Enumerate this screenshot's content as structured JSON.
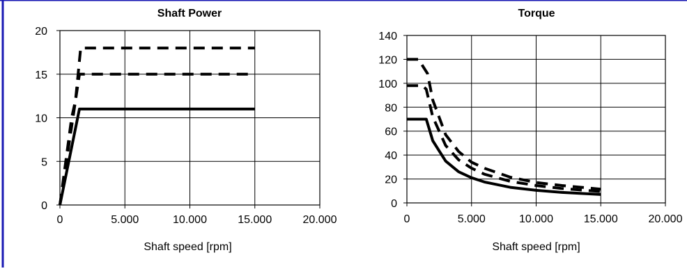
{
  "chart_data": [
    {
      "type": "line",
      "title": "Shaft Power",
      "xlabel": "Shaft speed [rpm]",
      "ylabel": "",
      "xlim": [
        0,
        20000
      ],
      "ylim": [
        0,
        20
      ],
      "x_ticks": [
        0,
        5000,
        10000,
        15000,
        20000
      ],
      "x_tick_labels": [
        "0",
        "5.000",
        "10.000",
        "15.000",
        "20.000"
      ],
      "y_ticks": [
        0,
        5,
        10,
        15,
        20
      ],
      "y_tick_labels": [
        "0",
        "5",
        "10",
        "15",
        "20"
      ],
      "grid": true,
      "series": [
        {
          "style": "solid",
          "x": [
            0,
            1500,
            15000
          ],
          "y": [
            0,
            11,
            11
          ]
        },
        {
          "style": "dashed",
          "x": [
            0,
            1200,
            1500,
            15000
          ],
          "y": [
            0,
            12,
            15,
            15
          ]
        },
        {
          "style": "dashed",
          "x": [
            0,
            900,
            1200,
            1600,
            15000
          ],
          "y": [
            0,
            10,
            12,
            18,
            18
          ]
        }
      ]
    },
    {
      "type": "line",
      "title": "Torque",
      "xlabel": "Shaft speed [rpm]",
      "ylabel": "",
      "xlim": [
        0,
        20000
      ],
      "ylim": [
        0,
        140
      ],
      "x_ticks": [
        0,
        5000,
        10000,
        15000,
        20000
      ],
      "x_tick_labels": [
        "0",
        "5.000",
        "10.000",
        "15.000",
        "20.000"
      ],
      "y_ticks": [
        0,
        20,
        40,
        60,
        80,
        100,
        120,
        140
      ],
      "y_tick_labels": [
        "0",
        "20",
        "40",
        "60",
        "80",
        "100",
        "120",
        "140"
      ],
      "grid": true,
      "series": [
        {
          "style": "solid",
          "x": [
            0,
            1500,
            2000,
            3000,
            4000,
            5000,
            6000,
            8000,
            10000,
            12000,
            15000
          ],
          "y": [
            70,
            70,
            52,
            35,
            26,
            21,
            17.5,
            13,
            10.5,
            8.8,
            7
          ]
        },
        {
          "style": "dashed",
          "x": [
            0,
            1200,
            1500,
            2000,
            3000,
            4000,
            5000,
            6000,
            8000,
            10000,
            12000,
            15000
          ],
          "y": [
            98,
            98,
            95,
            72,
            48,
            36,
            29,
            24,
            18,
            14.5,
            12,
            9.5
          ]
        },
        {
          "style": "dashed",
          "x": [
            0,
            900,
            1600,
            2000,
            3000,
            4000,
            5000,
            6000,
            8000,
            10000,
            12000,
            15000
          ],
          "y": [
            120,
            120,
            108,
            86,
            57,
            43,
            34,
            29,
            21.5,
            17,
            14.5,
            11.5
          ]
        }
      ]
    }
  ]
}
